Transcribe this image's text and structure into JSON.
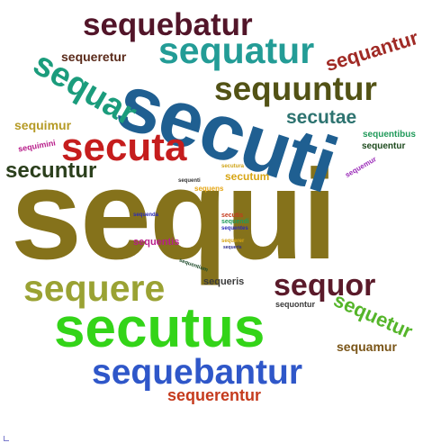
{
  "word_cloud": {
    "background": "#ffffff",
    "words": [
      {
        "text": "sequi",
        "color": "#85721b"
      },
      {
        "text": "secuti",
        "color": "#1f5f91"
      },
      {
        "text": "secutus",
        "color": "#33d418"
      },
      {
        "text": "sequebantur",
        "color": "#2f57c9"
      },
      {
        "text": "sequere",
        "color": "#9aa233"
      },
      {
        "text": "sequatur",
        "color": "#239c96"
      },
      {
        "text": "sequuntur",
        "color": "#525215"
      },
      {
        "text": "sequebatur",
        "color": "#521529"
      },
      {
        "text": "secuta",
        "color": "#c51d1d"
      },
      {
        "text": "sequar",
        "color": "#1b9c7c"
      },
      {
        "text": "sequor",
        "color": "#5a1a2a"
      },
      {
        "text": "sequantur",
        "color": "#a02a25"
      },
      {
        "text": "secuntur",
        "color": "#2b3f1c"
      },
      {
        "text": "sequetur",
        "color": "#55b52a"
      },
      {
        "text": "secutae",
        "color": "#2d7370"
      },
      {
        "text": "sequerentur",
        "color": "#c53b1d"
      },
      {
        "text": "sequamur",
        "color": "#7a5518"
      },
      {
        "text": "sequeretur",
        "color": "#5a2a1a"
      },
      {
        "text": "sequimur",
        "color": "#b59a25"
      },
      {
        "text": "secutum",
        "color": "#d7a514"
      },
      {
        "text": "sequeris",
        "color": "#3a3a3a"
      },
      {
        "text": "sequentibus",
        "color": "#209a5a"
      },
      {
        "text": "sequentur",
        "color": "#1d4a1d"
      },
      {
        "text": "sequimini",
        "color": "#b81d8a"
      },
      {
        "text": "sequentis",
        "color": "#b81d8a"
      },
      {
        "text": "sequemur",
        "color": "#9a2ab8"
      },
      {
        "text": "sequontur",
        "color": "#3a3a3a"
      },
      {
        "text": "secutura",
        "color": "#cfa316"
      },
      {
        "text": "sequens",
        "color": "#e5a514"
      },
      {
        "text": "sequenti",
        "color": "#333333"
      },
      {
        "text": "secutis",
        "color": "#c53b1d"
      },
      {
        "text": "sequendi",
        "color": "#209a5a"
      },
      {
        "text": "sequentes",
        "color": "#2a2ab8"
      },
      {
        "text": "sequerer",
        "color": "#d7a514"
      },
      {
        "text": "sequeris",
        "color": "#2a2a8a"
      },
      {
        "text": "sequenda",
        "color": "#2a2ab8"
      },
      {
        "text": "sequentium",
        "color": "#1d4a2a"
      }
    ]
  }
}
